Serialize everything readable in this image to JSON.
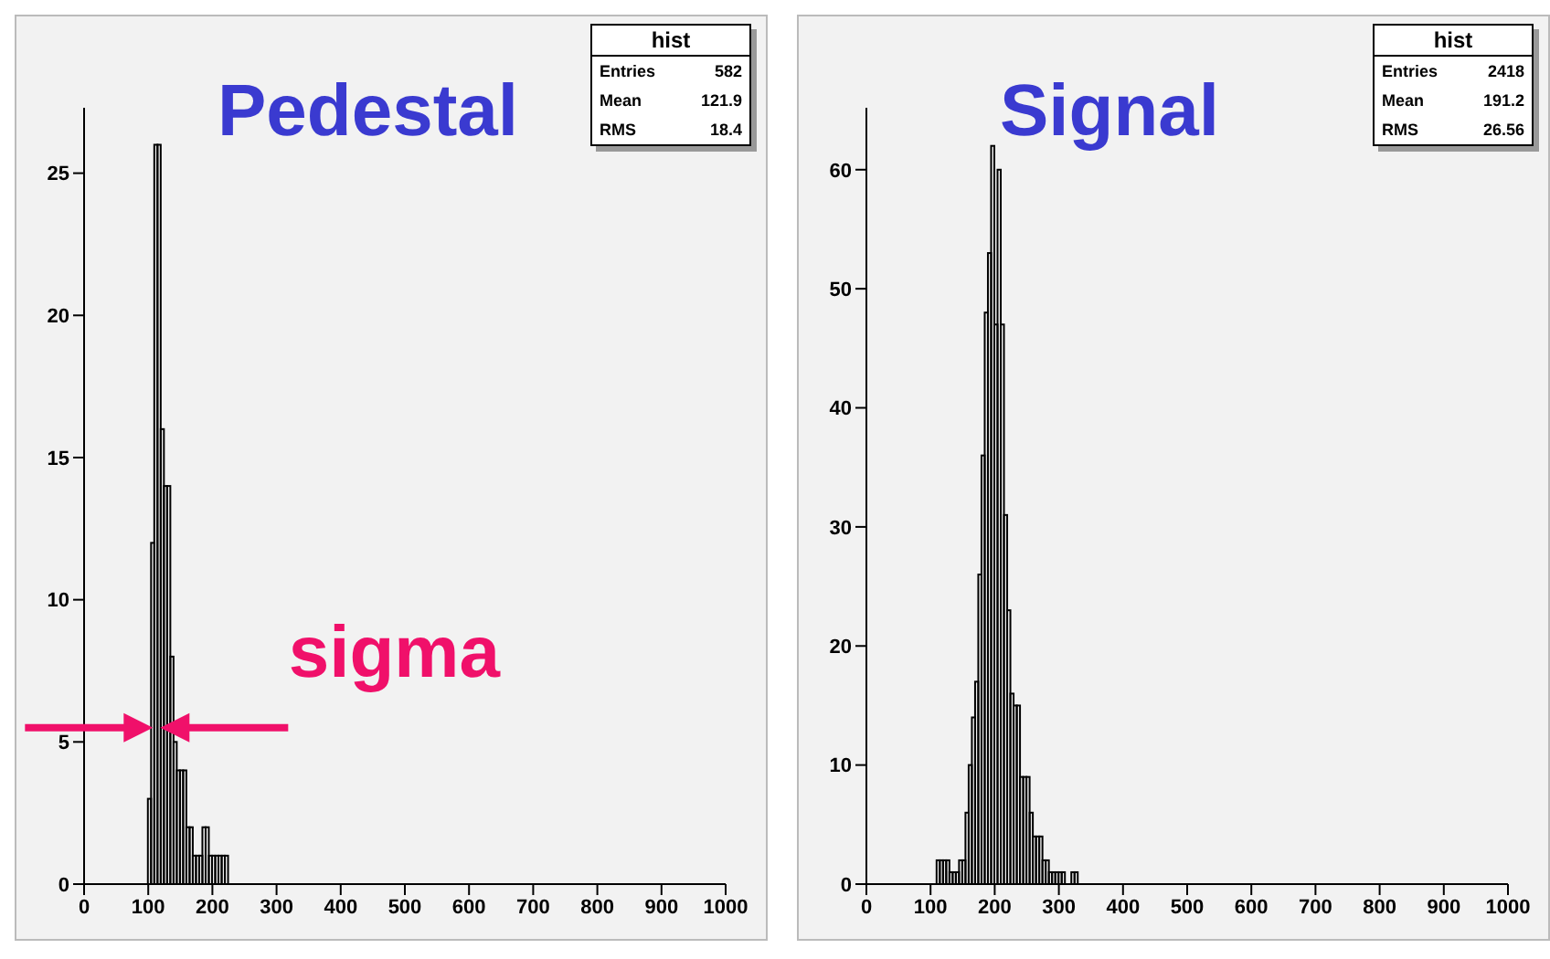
{
  "chart_data": [
    {
      "type": "histogram",
      "title": "Pedestal",
      "color": "#000000",
      "bins": [
        95,
        100,
        105,
        110,
        115,
        120,
        125,
        130,
        135,
        140,
        145,
        150,
        155,
        160,
        165,
        170,
        175,
        180,
        185,
        190,
        195,
        200,
        205,
        210,
        215,
        220,
        225
      ],
      "values": [
        0,
        3,
        12,
        26,
        26,
        16,
        14,
        14,
        8,
        5,
        4,
        4,
        4,
        2,
        2,
        1,
        1,
        1,
        2,
        2,
        1,
        1,
        1,
        1,
        1,
        1
      ],
      "xlim": [
        0,
        1000
      ],
      "xticks": [
        0,
        100,
        200,
        300,
        400,
        500,
        600,
        700,
        800,
        900,
        1000
      ],
      "ylim": [
        0,
        27.3
      ],
      "yticks": [
        0,
        5,
        10,
        15,
        20,
        25
      ],
      "annotations": [
        "hist",
        "Entries",
        "582",
        "Mean",
        "121.9",
        "RMS",
        "18.4",
        {
          "text": "sigma",
          "x": 113,
          "y": 5.5
        }
      ]
    },
    {
      "type": "histogram",
      "title": "Signal",
      "color": "#000000",
      "bins": [
        110,
        115,
        120,
        125,
        130,
        135,
        140,
        145,
        150,
        155,
        160,
        165,
        170,
        175,
        180,
        185,
        190,
        195,
        200,
        205,
        210,
        215,
        220,
        225,
        230,
        235,
        240,
        245,
        250,
        255,
        260,
        265,
        270,
        275,
        280,
        285,
        290,
        295,
        300,
        305,
        310,
        315,
        320,
        325,
        330,
        335
      ],
      "values": [
        2,
        2,
        2,
        2,
        1,
        1,
        1,
        2,
        2,
        6,
        10,
        14,
        17,
        26,
        36,
        48,
        53,
        62,
        47,
        60,
        47,
        31,
        23,
        16,
        15,
        15,
        9,
        9,
        9,
        6,
        4,
        4,
        4,
        2,
        2,
        1,
        1,
        1,
        1,
        1,
        0,
        0,
        1,
        1,
        0
      ],
      "xlim": [
        0,
        1000
      ],
      "xticks": [
        0,
        100,
        200,
        300,
        400,
        500,
        600,
        700,
        800,
        900,
        1000
      ],
      "ylim": [
        0,
        65.2
      ],
      "yticks": [
        0,
        10,
        20,
        30,
        40,
        50,
        60
      ],
      "annotations": [
        "hist",
        "Entries",
        "2418",
        "Mean",
        "191.2",
        "RMS",
        "26.56"
      ]
    }
  ]
}
